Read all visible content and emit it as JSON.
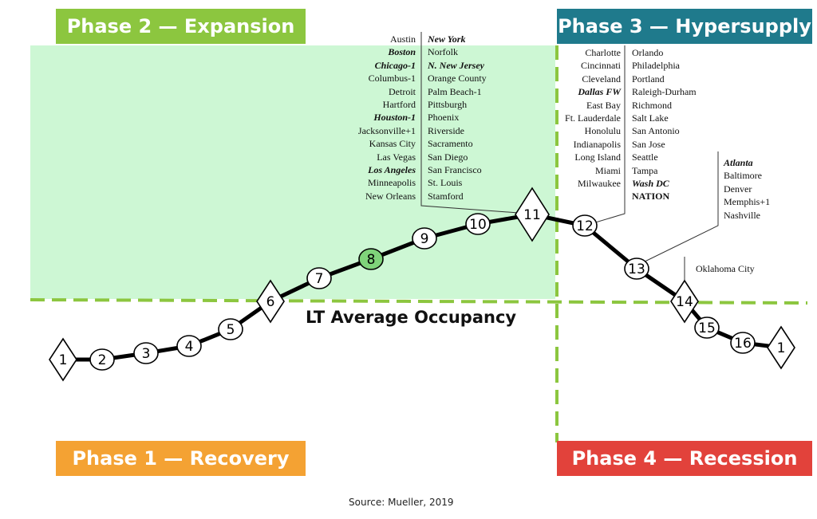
{
  "phases": {
    "phase1": {
      "label": "Phase 1 — Recovery",
      "color": "#f4a233"
    },
    "phase2": {
      "label": "Phase 2 — Expansion",
      "color": "#8cc63f"
    },
    "phase3": {
      "label": "Phase 3 — Hypersupply",
      "color": "#1f7a8c"
    },
    "phase4": {
      "label": "Phase 4 — Recession",
      "color": "#e2423b"
    }
  },
  "expansion_fill_color": "#cdf7d4",
  "guide_line_color": "#8cc63f",
  "highlight_marker_color": "#7fd37a",
  "lt_average_label": "LT Average Occupancy",
  "source": "Source: Mueller, 2019",
  "markers": [
    {
      "label": "1",
      "shape": "diamond"
    },
    {
      "label": "2",
      "shape": "circle"
    },
    {
      "label": "3",
      "shape": "circle"
    },
    {
      "label": "4",
      "shape": "circle"
    },
    {
      "label": "5",
      "shape": "circle"
    },
    {
      "label": "6",
      "shape": "diamond"
    },
    {
      "label": "7",
      "shape": "circle"
    },
    {
      "label": "8",
      "shape": "circle",
      "highlight": true
    },
    {
      "label": "9",
      "shape": "circle"
    },
    {
      "label": "10",
      "shape": "circle"
    },
    {
      "label": "11",
      "shape": "diamond"
    },
    {
      "label": "12",
      "shape": "circle"
    },
    {
      "label": "13",
      "shape": "circle"
    },
    {
      "label": "14",
      "shape": "diamond"
    },
    {
      "label": "15",
      "shape": "circle"
    },
    {
      "label": "16",
      "shape": "circle"
    },
    {
      "label": "1",
      "shape": "diamond"
    }
  ],
  "markets": {
    "point11_left": [
      {
        "name": "Austin",
        "style": "normal"
      },
      {
        "name": "Boston",
        "style": "emphasis"
      },
      {
        "name": "Chicago-1",
        "style": "emphasis"
      },
      {
        "name": "Columbus-1",
        "style": "normal"
      },
      {
        "name": "Detroit",
        "style": "normal"
      },
      {
        "name": "Hartford",
        "style": "normal"
      },
      {
        "name": "Houston-1",
        "style": "emphasis"
      },
      {
        "name": "Jacksonville+1",
        "style": "normal"
      },
      {
        "name": "Kansas City",
        "style": "normal"
      },
      {
        "name": "Las Vegas",
        "style": "normal"
      },
      {
        "name": "Los Angeles",
        "style": "emphasis"
      },
      {
        "name": "Minneapolis",
        "style": "normal"
      },
      {
        "name": "New Orleans",
        "style": "normal"
      }
    ],
    "point11_right": [
      {
        "name": "New York",
        "style": "emphasis"
      },
      {
        "name": "Norfolk",
        "style": "normal"
      },
      {
        "name": "N. New Jersey",
        "style": "emphasis"
      },
      {
        "name": "Orange County",
        "style": "normal"
      },
      {
        "name": "Palm Beach-1",
        "style": "normal"
      },
      {
        "name": "Pittsburgh",
        "style": "normal"
      },
      {
        "name": "Phoenix",
        "style": "normal"
      },
      {
        "name": "Riverside",
        "style": "normal"
      },
      {
        "name": "Sacramento",
        "style": "normal"
      },
      {
        "name": "San Diego",
        "style": "normal"
      },
      {
        "name": "San Francisco",
        "style": "normal"
      },
      {
        "name": "St. Louis",
        "style": "normal"
      },
      {
        "name": "Stamford",
        "style": "normal"
      }
    ],
    "point12_left": [
      {
        "name": "Charlotte",
        "style": "normal"
      },
      {
        "name": "Cincinnati",
        "style": "normal"
      },
      {
        "name": "Cleveland",
        "style": "normal"
      },
      {
        "name": "Dallas FW",
        "style": "emphasis"
      },
      {
        "name": "East Bay",
        "style": "normal"
      },
      {
        "name": "Ft. Lauderdale",
        "style": "normal"
      },
      {
        "name": "Honolulu",
        "style": "normal"
      },
      {
        "name": "Indianapolis",
        "style": "normal"
      },
      {
        "name": "Long Island",
        "style": "normal"
      },
      {
        "name": "Miami",
        "style": "normal"
      },
      {
        "name": "Milwaukee",
        "style": "normal"
      }
    ],
    "point12_right": [
      {
        "name": "Orlando",
        "style": "normal"
      },
      {
        "name": "Philadelphia",
        "style": "normal"
      },
      {
        "name": "Portland",
        "style": "normal"
      },
      {
        "name": "Raleigh-Durham",
        "style": "normal"
      },
      {
        "name": "Richmond",
        "style": "normal"
      },
      {
        "name": "Salt Lake",
        "style": "normal"
      },
      {
        "name": "San Antonio",
        "style": "normal"
      },
      {
        "name": "San Jose",
        "style": "normal"
      },
      {
        "name": "Seattle",
        "style": "normal"
      },
      {
        "name": "Tampa",
        "style": "normal"
      },
      {
        "name": "Wash DC",
        "style": "emphasis"
      },
      {
        "name": "NATION",
        "style": "bold"
      }
    ],
    "point13": [
      {
        "name": "Atlanta",
        "style": "emphasis"
      },
      {
        "name": "Baltimore",
        "style": "normal"
      },
      {
        "name": "Denver",
        "style": "normal"
      },
      {
        "name": "Memphis+1",
        "style": "normal"
      },
      {
        "name": "Nashville",
        "style": "normal"
      }
    ],
    "point14": [
      {
        "name": "Oklahoma City",
        "style": "normal"
      }
    ]
  }
}
